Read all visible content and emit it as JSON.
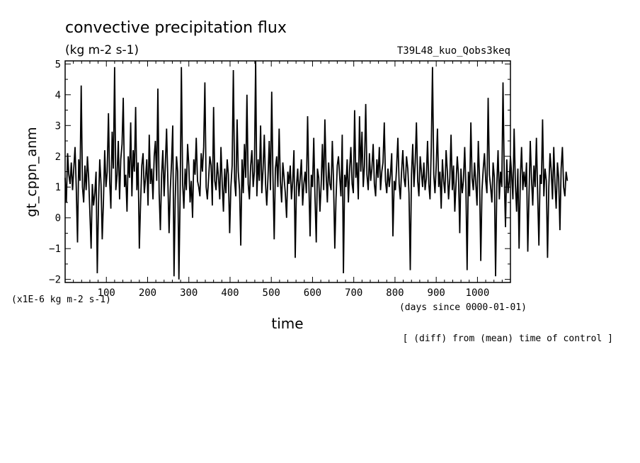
{
  "chart_data": {
    "type": "line",
    "title": "convective precipitation flux",
    "units": "(kg m-2 s-1)",
    "experiment": "T39L48_kuo_Qobs3keq",
    "ylabel": "gt_cppn_anm",
    "yscale_note": "(x1E-6 kg m-2 s-1)",
    "xlabel": "time",
    "xunits": "(days since 0000-01-01)",
    "footnote": "[ (diff) from (mean) time of control ]",
    "xlim": [
      0,
      1080
    ],
    "ylim": [
      -2.1,
      5.1
    ],
    "xticks": [
      100,
      200,
      300,
      400,
      500,
      600,
      700,
      800,
      900,
      1000
    ],
    "yticks": [
      -2,
      -1,
      0,
      1,
      2,
      3,
      4,
      5
    ],
    "x_step": 3,
    "series": [
      {
        "values": [
          1.3,
          0.5,
          2.1,
          1.4,
          1.1,
          1.8,
          0.9,
          1.6,
          2.3,
          1.0,
          -0.8,
          1.9,
          1.2,
          4.3,
          1.0,
          0.5,
          1.7,
          0.9,
          2.0,
          1.3,
          0.2,
          -1.0,
          1.1,
          0.4,
          0.8,
          1.5,
          -1.8,
          0.5,
          1.9,
          1.1,
          -0.7,
          0.6,
          2.2,
          1.0,
          1.5,
          3.4,
          1.2,
          0.3,
          2.8,
          1.6,
          4.9,
          0.9,
          1.4,
          2.5,
          0.6,
          1.9,
          2.4,
          3.9,
          1.0,
          1.4,
          0.2,
          2.0,
          1.3,
          3.1,
          0.7,
          2.2,
          1.5,
          3.6,
          0.9,
          1.8,
          -1.0,
          0.5,
          1.7,
          2.1,
          0.8,
          1.3,
          1.9,
          0.4,
          2.7,
          1.1,
          1.6,
          0.6,
          2.0,
          2.5,
          1.2,
          4.2,
          0.8,
          -0.4,
          1.4,
          2.2,
          0.7,
          1.7,
          2.9,
          1.3,
          -0.5,
          0.9,
          1.8,
          3.0,
          -1.9,
          0.6,
          2.0,
          1.5,
          -2.0,
          0.8,
          4.9,
          1.1,
          0.3,
          1.6,
          0.9,
          2.4,
          1.7,
          0.5,
          1.2,
          0.0,
          1.9,
          1.4,
          2.6,
          1.2,
          1.0,
          0.7,
          2.1,
          1.5,
          2.3,
          4.4,
          1.0,
          0.6,
          1.3,
          2.0,
          1.7,
          0.4,
          3.6,
          1.2,
          0.9,
          1.8,
          1.3,
          0.6,
          2.3,
          1.1,
          0.2,
          1.6,
          0.8,
          1.9,
          1.4,
          -0.5,
          1.0,
          1.7,
          4.8,
          1.2,
          0.7,
          3.2,
          1.5,
          0.9,
          -0.9,
          1.9,
          0.8,
          2.4,
          1.3,
          4.0,
          1.1,
          0.6,
          1.7,
          2.2,
          1.0,
          1.5,
          5.1,
          0.7,
          1.9,
          1.2,
          3.0,
          0.8,
          1.6,
          2.7,
          1.1,
          0.4,
          1.3,
          2.5,
          0.9,
          4.1,
          1.4,
          -0.7,
          1.6,
          2.0,
          1.0,
          2.9,
          1.2,
          0.5,
          1.8,
          1.3,
          0.8,
          0.0,
          1.5,
          1.1,
          1.7,
          0.6,
          1.2,
          2.2,
          -1.3,
          1.0,
          1.6,
          0.7,
          1.3,
          1.9,
          0.4,
          1.1,
          1.5,
          0.8,
          3.3,
          1.2,
          -0.6,
          1.4,
          1.0,
          2.6,
          0.7,
          -0.8,
          1.6,
          1.3,
          0.2,
          1.1,
          2.4,
          0.9,
          3.2,
          1.4,
          0.5,
          1.8,
          1.1,
          0.9,
          2.5,
          1.2,
          -1.0,
          0.6,
          1.7,
          2.0,
          1.3,
          0.7,
          2.7,
          -1.8,
          1.4,
          1.0,
          1.9,
          0.5,
          1.6,
          2.3,
          1.1,
          0.8,
          3.5,
          1.3,
          1.8,
          0.6,
          3.3,
          1.5,
          2.8,
          1.0,
          1.7,
          3.7,
          1.4,
          0.9,
          2.1,
          1.2,
          1.6,
          2.4,
          1.1,
          0.7,
          1.9,
          1.3,
          2.3,
          0.9,
          1.5,
          1.8,
          3.1,
          1.2,
          0.8,
          1.6,
          1.0,
          1.4,
          2.1,
          -0.6,
          1.2,
          0.9,
          1.7,
          2.6,
          1.1,
          0.6,
          1.5,
          2.2,
          1.3,
          1.0,
          2.0,
          1.6,
          0.8,
          -1.7,
          1.4,
          2.4,
          1.0,
          1.8,
          3.1,
          1.2,
          0.7,
          2.0,
          1.5,
          1.0,
          1.8,
          0.9,
          1.3,
          2.5,
          1.1,
          0.6,
          2.3,
          4.9,
          1.4,
          0.8,
          1.7,
          2.9,
          1.0,
          1.5,
          0.3,
          1.9,
          1.2,
          0.8,
          2.2,
          1.5,
          0.6,
          1.3,
          2.7,
          0.9,
          1.7,
          0.2,
          1.1,
          2.0,
          1.4,
          -0.5,
          1.6,
          0.8,
          1.2,
          2.3,
          1.0,
          -1.7,
          1.5,
          0.7,
          3.1,
          1.3,
          0.9,
          1.8,
          1.1,
          0.4,
          2.5,
          1.3,
          -1.4,
          0.9,
          1.6,
          2.1,
          1.2,
          0.8,
          3.9,
          1.4,
          1.0,
          0.5,
          1.8,
          1.3,
          -1.9,
          1.1,
          2.2,
          0.6,
          1.5,
          1.0,
          4.4,
          1.3,
          -0.3,
          1.9,
          0.8,
          1.2,
          2.0,
          1.4,
          0.6,
          2.9,
          1.1,
          0.2,
          1.6,
          -1.0,
          1.3,
          2.3,
          0.9,
          1.5,
          1.0,
          1.8,
          -1.1,
          0.7,
          2.5,
          1.3,
          0.4,
          1.7,
          1.0,
          2.6,
          0.8,
          -0.9,
          1.4,
          1.1,
          3.2,
          0.7,
          1.6,
          1.2,
          -1.3,
          1.0,
          2.1,
          1.5,
          0.6,
          2.3,
          1.1,
          0.3,
          1.8,
          1.3,
          -0.4,
          1.6,
          2.3,
          1.0,
          0.7,
          1.5,
          1.2
        ],
        "color": "#000000"
      }
    ]
  }
}
